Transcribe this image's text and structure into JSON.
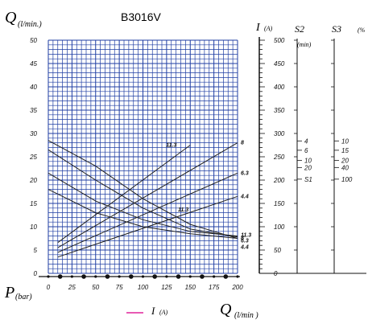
{
  "chart_data": {
    "type": "line",
    "title": "B3016V",
    "colors": {
      "grid": "#1f3ea3",
      "curve": "#222222",
      "current_legend": "#e0249a"
    },
    "x_axis": {
      "symbol": "P",
      "unit": "(bar)",
      "ticks": [
        "0",
        "25",
        "50",
        "75",
        "100",
        "125",
        "150",
        "175",
        "200"
      ],
      "range": [
        0,
        200
      ]
    },
    "y_axis": {
      "symbol": "Q",
      "unit": "(l/min.)",
      "ticks": [
        "0",
        "5",
        "10",
        "15",
        "20",
        "25",
        "30",
        "35",
        "40",
        "45",
        "50"
      ],
      "range": [
        0,
        50
      ]
    },
    "current_axis": {
      "symbol": "I",
      "unit": "(A)",
      "ticks": [
        "0",
        "50",
        "100",
        "150",
        "200",
        "250",
        "300",
        "350",
        "400",
        "450",
        "500"
      ],
      "range": [
        0,
        500
      ]
    },
    "s2_axis": {
      "label": "S2",
      "unit": "(min)",
      "ticks": [
        "4",
        "6",
        "10",
        "20",
        "S1"
      ]
    },
    "s3_axis": {
      "label": "S3",
      "unit": "(%",
      "ticks": [
        "10",
        "15",
        "20",
        "40",
        "100"
      ]
    },
    "flow_series": [
      {
        "name": "11.3",
        "x": [
          0,
          50,
          100,
          150,
          200
        ],
        "y": [
          28.5,
          23,
          16,
          10.5,
          7.5
        ]
      },
      {
        "name": "8",
        "x": [
          0,
          50,
          100,
          150,
          200
        ],
        "y": [
          26.5,
          20,
          14,
          9.5,
          7.8
        ]
      },
      {
        "name": "6.3",
        "x": [
          0,
          50,
          100,
          150,
          200
        ],
        "y": [
          21.5,
          15.5,
          11.5,
          9,
          8
        ]
      },
      {
        "name": "4.4",
        "x": [
          0,
          50,
          100,
          150,
          200
        ],
        "y": [
          18,
          13,
          10,
          8.5,
          7.5
        ]
      }
    ],
    "current_series": [
      {
        "name": "11.3",
        "x": [
          10,
          150
        ],
        "y": [
          66,
          275
        ]
      },
      {
        "name": "8",
        "x": [
          10,
          200
        ],
        "y": [
          55,
          280
        ]
      },
      {
        "name": "6.3",
        "x": [
          10,
          200
        ],
        "y": [
          45,
          215
        ]
      },
      {
        "name": "4.4",
        "x": [
          10,
          200
        ],
        "y": [
          35,
          165
        ]
      }
    ],
    "legend": [
      {
        "label": "I",
        "unit": "(A)"
      },
      {
        "label": "Q",
        "unit": "(l/min )"
      }
    ]
  }
}
